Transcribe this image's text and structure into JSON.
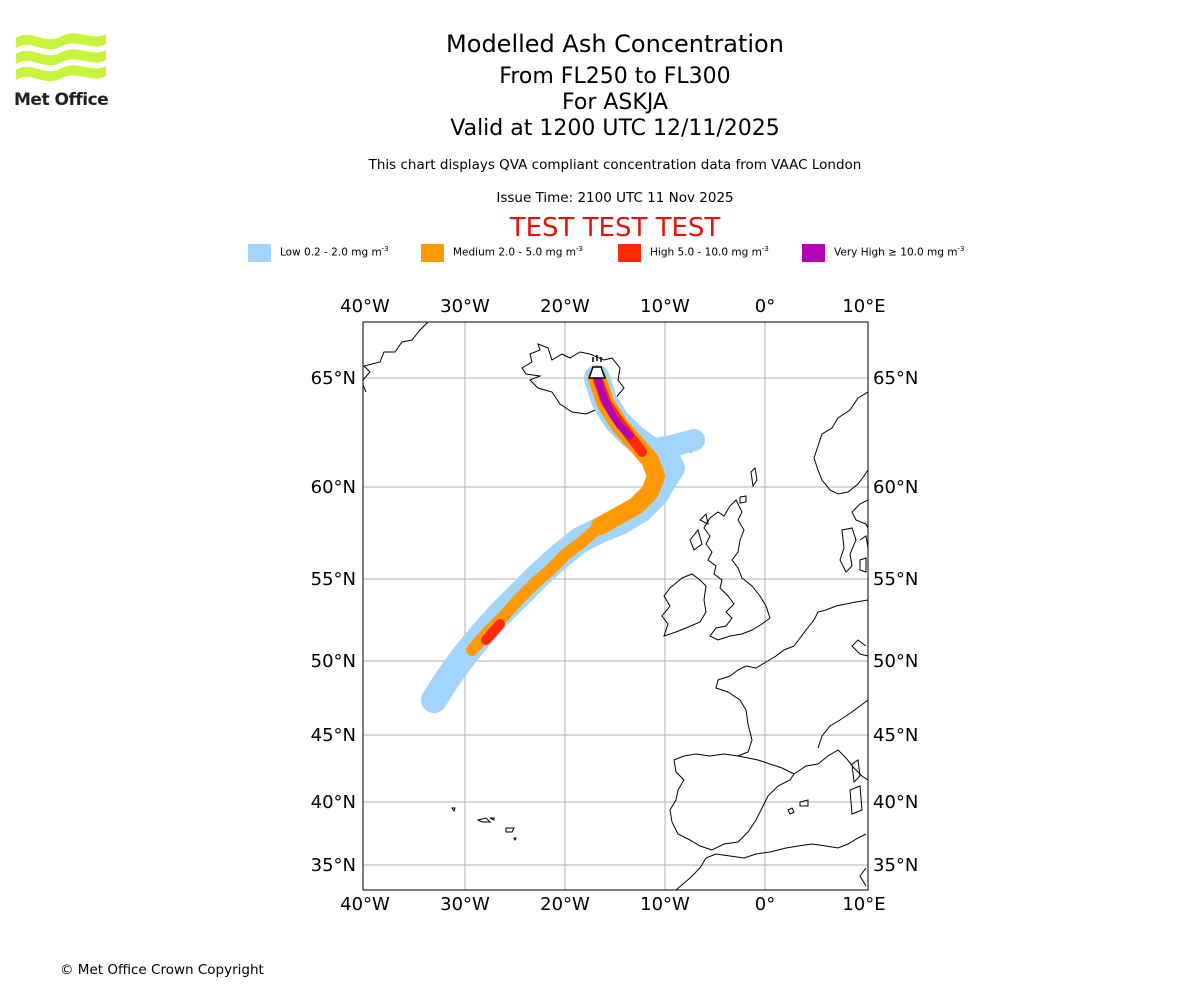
{
  "header": {
    "logo_text": "Met Office",
    "title": "Modelled Ash Concentration",
    "level_range": "From FL250 to FL300",
    "volcano": "For ASKJA",
    "valid_time": "Valid at 1200 UTC 12/11/2025",
    "description": "This chart displays QVA compliant concentration data from VAAC London",
    "issue_time": "Issue Time: 2100 UTC 11 Nov 2025",
    "test_banner": "TEST TEST TEST"
  },
  "legend": [
    {
      "label": "Low 0.2 - 2.0 mg m",
      "exp": "-3",
      "color": "#a3d4fb"
    },
    {
      "label": "Medium 2.0 - 5.0 mg m",
      "exp": "-3",
      "color": "#ff9a06"
    },
    {
      "label": "High 5.0 - 10.0 mg m",
      "exp": "-3",
      "color": "#ff2a06"
    },
    {
      "label": "Very High  ≥  10.0 mg m",
      "exp": "-3",
      "color": "#b405b4"
    }
  ],
  "map": {
    "lon_labels": [
      "40°W",
      "30°W",
      "20°W",
      "10°W",
      "0°",
      "10°E"
    ],
    "lat_labels": [
      "65°N",
      "60°N",
      "55°N",
      "50°N",
      "45°N",
      "40°N",
      "35°N"
    ],
    "volcano_icon": "volcano-icon"
  },
  "footer": {
    "copyright": "© Met Office Crown Copyright"
  }
}
